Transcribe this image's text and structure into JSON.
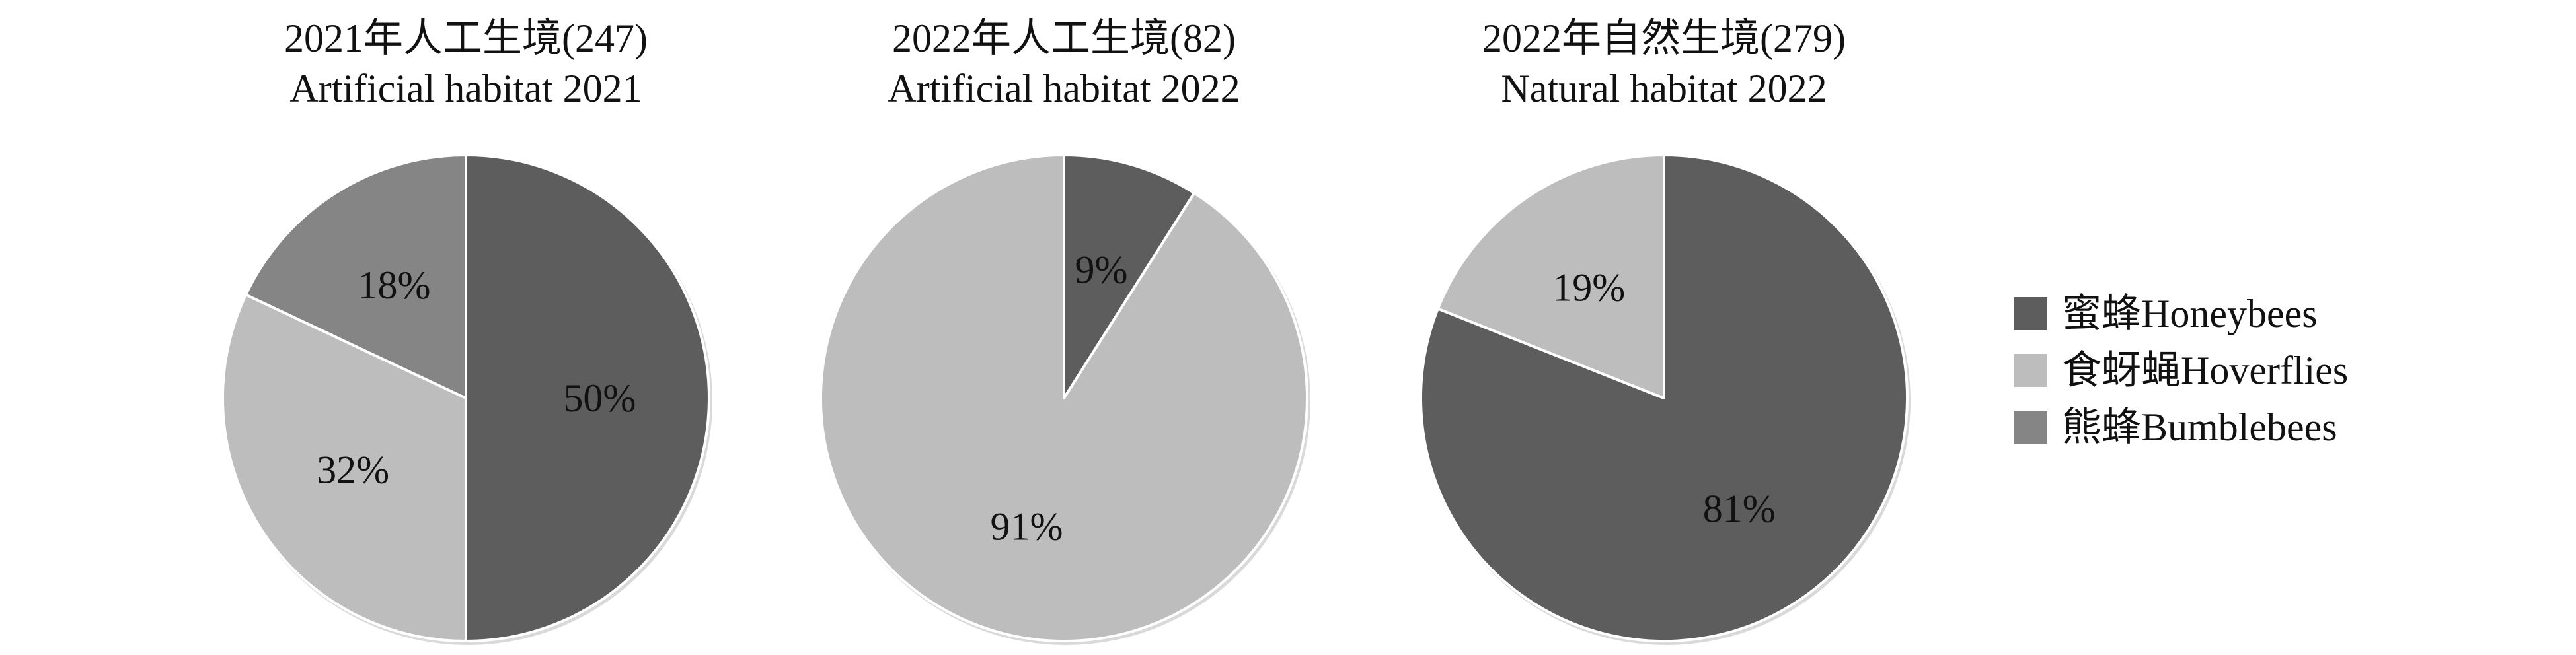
{
  "colors": {
    "honeybees": "#5d5d5d",
    "hoverflies": "#bdbdbd",
    "bumblebees": "#858585",
    "slice_border": "#ffffff",
    "pie_shadow": "#d9d9d9"
  },
  "legend": [
    {
      "label": "蜜蜂Honeybees",
      "color_key": "honeybees"
    },
    {
      "label": "食蚜蝇Hoverflies",
      "color_key": "hoverflies"
    },
    {
      "label": "熊蜂Bumblebees",
      "color_key": "bumblebees"
    }
  ],
  "chart_data": [
    {
      "type": "pie",
      "title_cn": "2021年人工生境(247)",
      "title_en": "Artificial habitat 2021",
      "slices": [
        {
          "name": "蜜蜂Honeybees",
          "value": 50,
          "label": "50%",
          "color_key": "honeybees"
        },
        {
          "name": "食蚜蝇Hoverflies",
          "value": 32,
          "label": "32%",
          "color_key": "hoverflies"
        },
        {
          "name": "熊蜂Bumblebees",
          "value": 18,
          "label": "18%",
          "color_key": "bumblebees"
        }
      ],
      "legend_position": "right"
    },
    {
      "type": "pie",
      "title_cn": "2022年人工生境(82)",
      "title_en": "Artificial habitat 2022",
      "slices": [
        {
          "name": "蜜蜂Honeybees",
          "value": 9,
          "label": "9%",
          "color_key": "honeybees"
        },
        {
          "name": "食蚜蝇Hoverflies",
          "value": 91,
          "label": "91%",
          "color_key": "hoverflies"
        }
      ],
      "legend_position": "right"
    },
    {
      "type": "pie",
      "title_cn": "2022年自然生境(279)",
      "title_en": "Natural habitat 2022",
      "slices": [
        {
          "name": "蜜蜂Honeybees",
          "value": 81,
          "label": "81%",
          "color_key": "honeybees"
        },
        {
          "name": "食蚜蝇Hoverflies",
          "value": 19,
          "label": "19%",
          "color_key": "hoverflies"
        }
      ],
      "legend_position": "right"
    }
  ]
}
